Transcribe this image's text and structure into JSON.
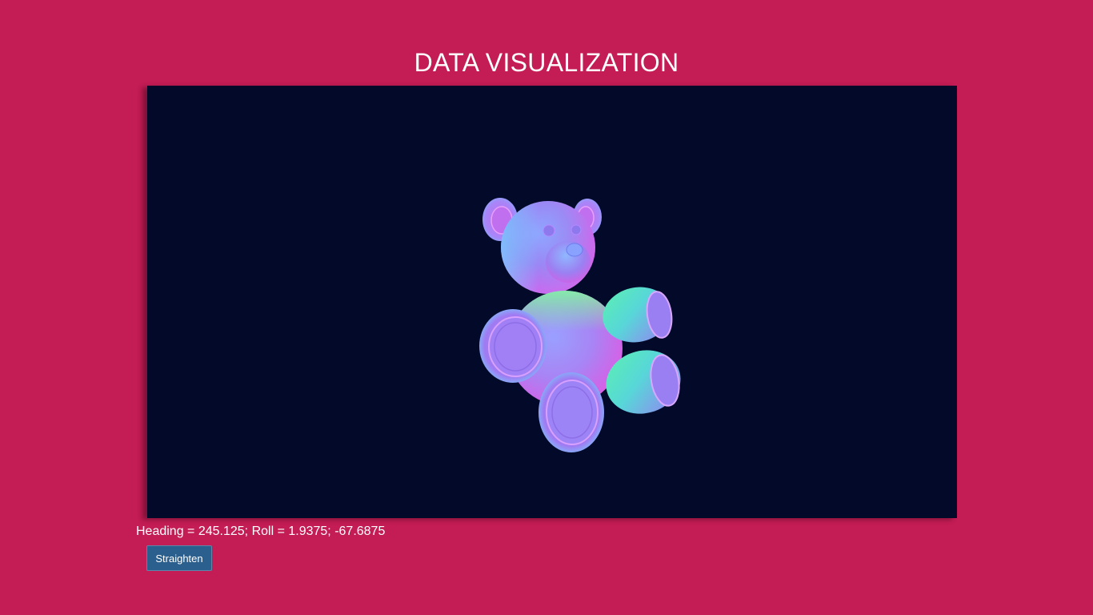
{
  "page": {
    "title": "DATA VISUALIZATION"
  },
  "viewer": {
    "model_icon": "teddy-bear-icon",
    "background_color": "#030a29"
  },
  "orientation": {
    "readout": "Heading = 245.125; Roll = 1.9375; -67.6875"
  },
  "controls": {
    "straighten_label": "Straighten"
  },
  "colors": {
    "page_background": "#c41c55",
    "button_background": "#2b5f8e"
  }
}
